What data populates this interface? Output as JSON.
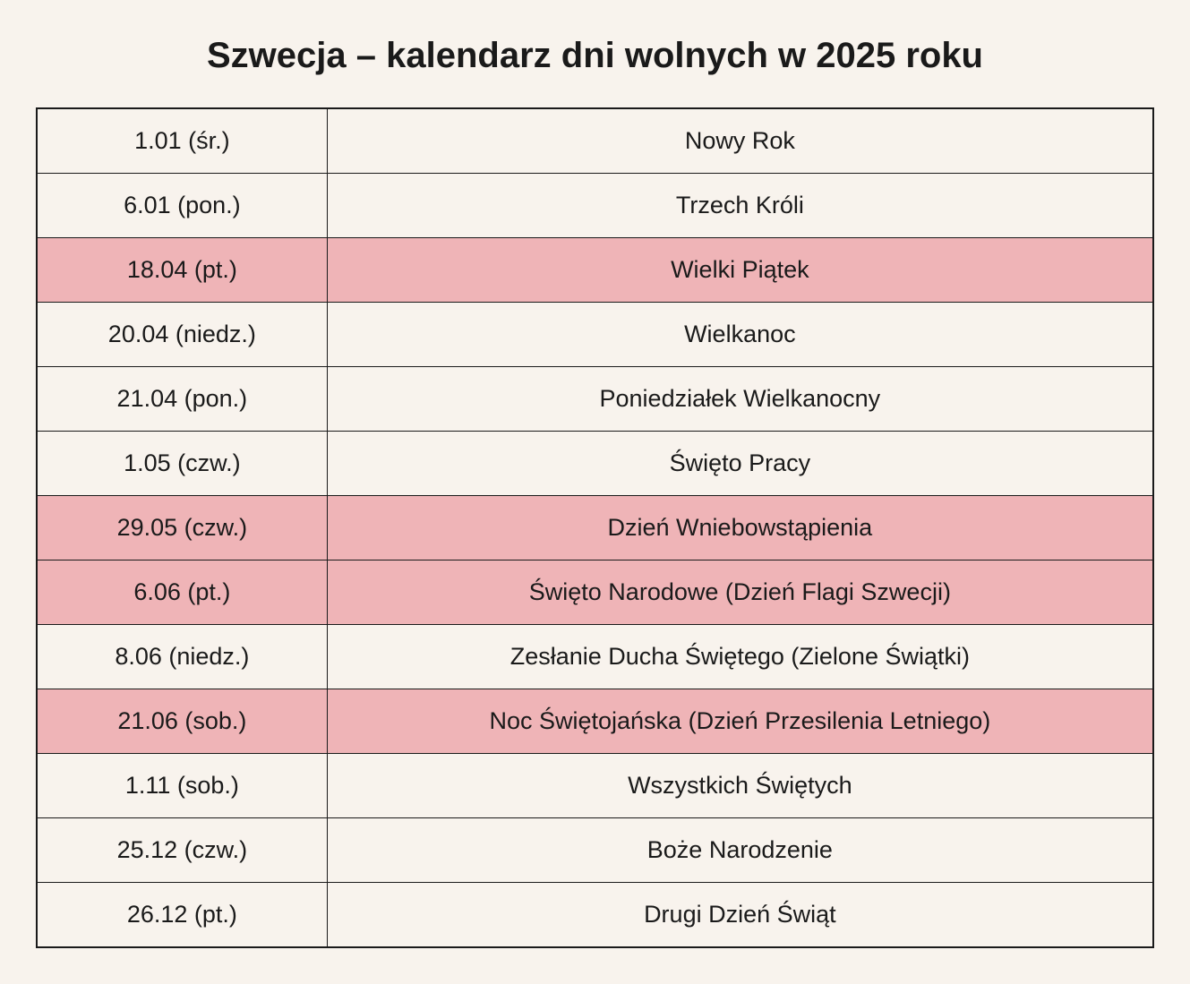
{
  "title": "Szwecja – kalendarz dni wolnych w 2025 roku",
  "colors": {
    "background": "#f8f3ed",
    "highlight_row": "#efb4b7",
    "border": "#1a1a1a",
    "text": "#1a1a1a"
  },
  "typography": {
    "title_fontsize": 40,
    "title_fontweight": 800,
    "cell_fontsize": 27
  },
  "table": {
    "type": "table",
    "columns": [
      {
        "key": "date",
        "width_pct": 26,
        "align": "center"
      },
      {
        "key": "name",
        "width_pct": 74,
        "align": "center"
      }
    ],
    "rows": [
      {
        "date": "1.01 (śr.)",
        "name": "Nowy Rok",
        "highlighted": false
      },
      {
        "date": "6.01 (pon.)",
        "name": "Trzech Króli",
        "highlighted": false
      },
      {
        "date": "18.04 (pt.)",
        "name": "Wielki Piątek",
        "highlighted": true
      },
      {
        "date": "20.04 (niedz.)",
        "name": "Wielkanoc",
        "highlighted": false
      },
      {
        "date": "21.04 (pon.)",
        "name": "Poniedziałek Wielkanocny",
        "highlighted": false
      },
      {
        "date": "1.05 (czw.)",
        "name": "Święto Pracy",
        "highlighted": false
      },
      {
        "date": "29.05 (czw.)",
        "name": "Dzień Wniebowstąpienia",
        "highlighted": true
      },
      {
        "date": "6.06 (pt.)",
        "name": "Święto Narodowe (Dzień Flagi Szwecji)",
        "highlighted": true
      },
      {
        "date": "8.06 (niedz.)",
        "name": "Zesłanie Ducha Świętego (Zielone Świątki)",
        "highlighted": false
      },
      {
        "date": "21.06 (sob.)",
        "name": "Noc Świętojańska (Dzień Przesilenia Letniego)",
        "highlighted": true
      },
      {
        "date": "1.11 (sob.)",
        "name": "Wszystkich Świętych",
        "highlighted": false
      },
      {
        "date": "25.12 (czw.)",
        "name": "Boże Narodzenie",
        "highlighted": false
      },
      {
        "date": "26.12 (pt.)",
        "name": "Drugi Dzień Świąt",
        "highlighted": false
      }
    ]
  }
}
